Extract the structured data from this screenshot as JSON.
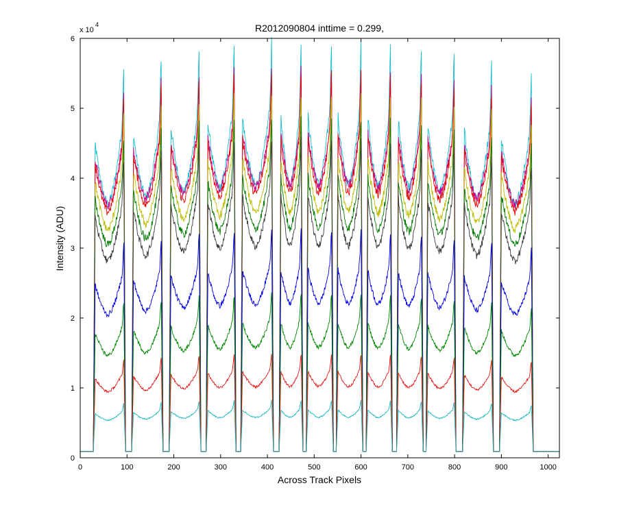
{
  "chart_data": {
    "type": "line",
    "title": "R2012090804 inttime = 0.299,",
    "xlabel": "Across Track Pixels",
    "ylabel": "Intensity (ADU)",
    "y_multiplier": {
      "base": "x 10",
      "exponent": "4"
    },
    "xlim": [
      0,
      1024
    ],
    "ylim": [
      0,
      60000
    ],
    "x_ticks": [
      0,
      100,
      200,
      300,
      400,
      500,
      600,
      700,
      800,
      900,
      1000
    ],
    "y_ticks": [
      0,
      10000,
      20000,
      30000,
      40000,
      50000,
      60000
    ],
    "y_tick_labels": [
      "0",
      "1",
      "2",
      "3",
      "4",
      "5",
      "6"
    ],
    "grid": false,
    "legend": "none",
    "background_level": 900,
    "slit_segments": [
      {
        "start": 31,
        "end": 94
      },
      {
        "start": 113,
        "end": 174
      },
      {
        "start": 193,
        "end": 255
      },
      {
        "start": 272,
        "end": 330
      },
      {
        "start": 346,
        "end": 410
      },
      {
        "start": 428,
        "end": 473
      },
      {
        "start": 486,
        "end": 538
      },
      {
        "start": 550,
        "end": 601
      },
      {
        "start": 614,
        "end": 664
      },
      {
        "start": 679,
        "end": 730
      },
      {
        "start": 742,
        "end": 800
      },
      {
        "start": 820,
        "end": 880
      },
      {
        "start": 899,
        "end": 965
      }
    ],
    "series": [
      {
        "color": "#17BECF",
        "peak": 57000,
        "edge": 44000,
        "valley": 38000
      },
      {
        "color": "#C8008C",
        "peak": 53000,
        "edge": 43000,
        "valley": 38000
      },
      {
        "color": "#E60000",
        "peak": 52500,
        "edge": 42000,
        "valley": 37000
      },
      {
        "color": "#BDBD00",
        "peak": 49500,
        "edge": 40000,
        "valley": 34000
      },
      {
        "color": "#007A00",
        "peak": 46500,
        "edge": 36500,
        "valley": 32000
      },
      {
        "color": "#3A3A3A",
        "peak": 43500,
        "edge": 34000,
        "valley": 29500
      },
      {
        "color": "#0000E6",
        "peak": 31000,
        "edge": 24500,
        "valley": 21500
      },
      {
        "color": "#008800",
        "peak": 22500,
        "edge": 17000,
        "valley": 15500
      },
      {
        "color": "#E61919",
        "peak": 14200,
        "edge": 11000,
        "valley": 10000
      },
      {
        "color": "#20B8C0",
        "peak": 7800,
        "edge": 6200,
        "valley": 5700
      }
    ]
  }
}
